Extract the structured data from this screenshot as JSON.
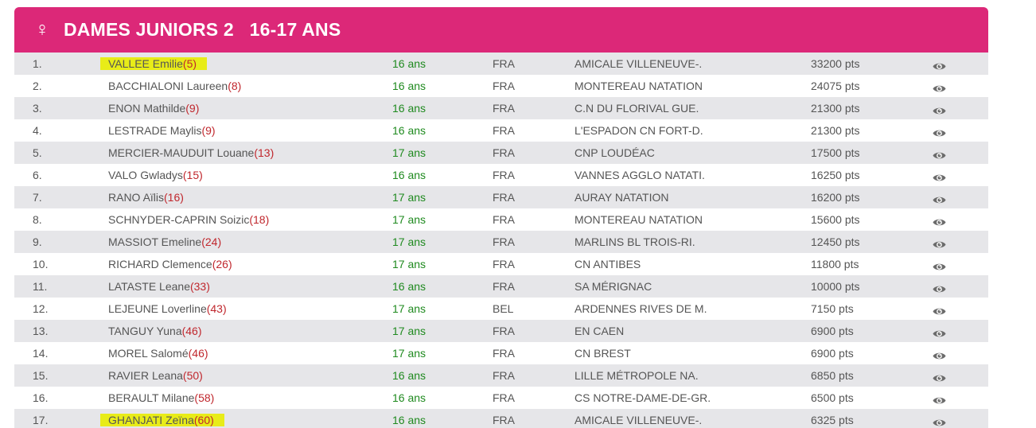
{
  "header": {
    "gender_icon": "♀",
    "title": "DAMES JUNIORS 2   16-17 ANS",
    "color": "#dc2878"
  },
  "rows": [
    {
      "rank": "1.",
      "name": "VALLEE Emilie",
      "ranking": "(5)",
      "age": "16 ans",
      "country": "FRA",
      "club": "AMICALE VILLENEUVE-.",
      "points": "33200 pts",
      "highlighted": true,
      "view_icon": "eye-icon"
    },
    {
      "rank": "2.",
      "name": "BACCHIALONI Laureen",
      "ranking": "(8)",
      "age": "16 ans",
      "country": "FRA",
      "club": "MONTEREAU NATATION",
      "points": "24075 pts",
      "highlighted": false,
      "view_icon": "eye-icon"
    },
    {
      "rank": "3.",
      "name": "ENON Mathilde",
      "ranking": "(9)",
      "age": "16 ans",
      "country": "FRA",
      "club": "C.N DU FLORIVAL GUE.",
      "points": "21300 pts",
      "highlighted": false,
      "view_icon": "eye-icon"
    },
    {
      "rank": "4.",
      "name": "LESTRADE Maylis",
      "ranking": "(9)",
      "age": "16 ans",
      "country": "FRA",
      "club": "L'ESPADON CN FORT-D.",
      "points": "21300 pts",
      "highlighted": false,
      "view_icon": "eye-icon"
    },
    {
      "rank": "5.",
      "name": "MERCIER-MAUDUIT Louane",
      "ranking": "(13)",
      "age": "17 ans",
      "country": "FRA",
      "club": "CNP LOUDÉAC",
      "points": "17500 pts",
      "highlighted": false,
      "view_icon": "eye-icon"
    },
    {
      "rank": "6.",
      "name": "VALO Gwladys",
      "ranking": "(15)",
      "age": "16 ans",
      "country": "FRA",
      "club": "VANNES AGGLO NATATI.",
      "points": "16250 pts",
      "highlighted": false,
      "view_icon": "eye-icon"
    },
    {
      "rank": "7.",
      "name": "RANO Aïlis",
      "ranking": "(16)",
      "age": "17 ans",
      "country": "FRA",
      "club": "AURAY NATATION",
      "points": "16200 pts",
      "highlighted": false,
      "view_icon": "eye-icon"
    },
    {
      "rank": "8.",
      "name": "SCHNYDER-CAPRIN Soizic",
      "ranking": "(18)",
      "age": "17 ans",
      "country": "FRA",
      "club": "MONTEREAU NATATION",
      "points": "15600 pts",
      "highlighted": false,
      "view_icon": "eye-icon"
    },
    {
      "rank": "9.",
      "name": "MASSIOT Emeline",
      "ranking": "(24)",
      "age": "17 ans",
      "country": "FRA",
      "club": "MARLINS BL TROIS-RI.",
      "points": "12450 pts",
      "highlighted": false,
      "view_icon": "eye-icon"
    },
    {
      "rank": "10.",
      "name": "RICHARD Clemence",
      "ranking": "(26)",
      "age": "17 ans",
      "country": "FRA",
      "club": "CN ANTIBES",
      "points": "11800 pts",
      "highlighted": false,
      "view_icon": "eye-icon"
    },
    {
      "rank": "11.",
      "name": "LATASTE Leane",
      "ranking": "(33)",
      "age": "16 ans",
      "country": "FRA",
      "club": "SA MÉRIGNAC",
      "points": "10000 pts",
      "highlighted": false,
      "view_icon": "eye-icon"
    },
    {
      "rank": "12.",
      "name": "LEJEUNE Loverline",
      "ranking": "(43)",
      "age": "17 ans",
      "country": "BEL",
      "club": "ARDENNES RIVES DE M.",
      "points": "7150 pts",
      "highlighted": false,
      "view_icon": "eye-icon"
    },
    {
      "rank": "13.",
      "name": "TANGUY Yuna",
      "ranking": "(46)",
      "age": "17 ans",
      "country": "FRA",
      "club": "EN CAEN",
      "points": "6900 pts",
      "highlighted": false,
      "view_icon": "eye-icon"
    },
    {
      "rank": "14.",
      "name": "MOREL Salomé",
      "ranking": "(46)",
      "age": "17 ans",
      "country": "FRA",
      "club": "CN BREST",
      "points": "6900 pts",
      "highlighted": false,
      "view_icon": "eye-icon"
    },
    {
      "rank": "15.",
      "name": "RAVIER Leana",
      "ranking": "(50)",
      "age": "16 ans",
      "country": "FRA",
      "club": "LILLE MÉTROPOLE NA.",
      "points": "6850 pts",
      "highlighted": false,
      "view_icon": "eye-icon"
    },
    {
      "rank": "16.",
      "name": "BERAULT Milane",
      "ranking": "(58)",
      "age": "16 ans",
      "country": "FRA",
      "club": "CS NOTRE-DAME-DE-GR.",
      "points": "6500 pts",
      "highlighted": false,
      "view_icon": "eye-icon"
    },
    {
      "rank": "17.",
      "name": "GHANJATI Zeïna",
      "ranking": "(60)",
      "age": "16 ans",
      "country": "FRA",
      "club": "AMICALE VILLENEUVE-.",
      "points": "6325 pts",
      "highlighted": true,
      "view_icon": "eye-icon"
    }
  ]
}
